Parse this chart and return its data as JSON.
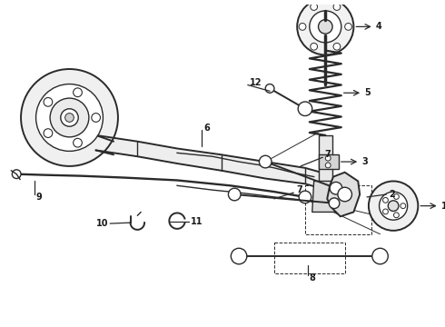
{
  "background_color": "#ffffff",
  "line_color": "#2a2a2a",
  "label_color": "#1a1a1a",
  "label_fontsize": 7.0,
  "fig_width": 4.9,
  "fig_height": 3.6,
  "dpi": 100
}
